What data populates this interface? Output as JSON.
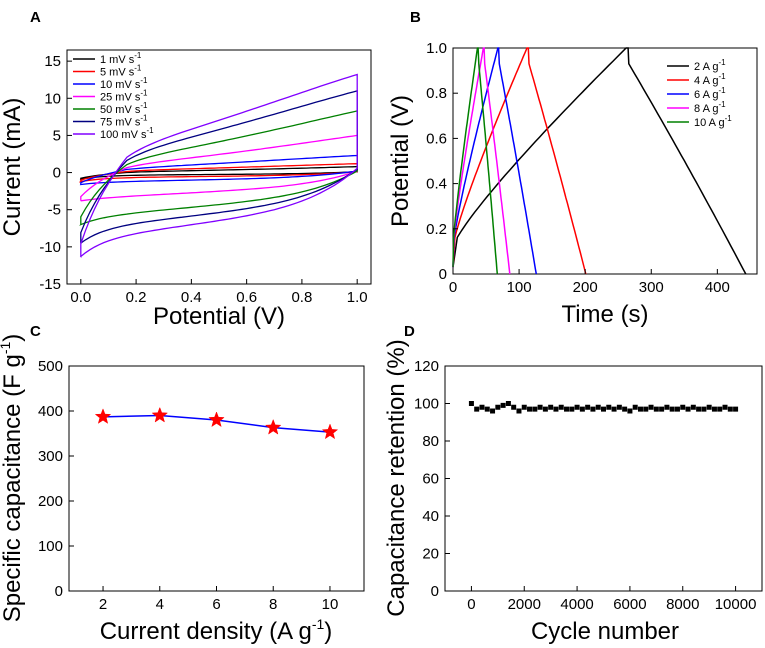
{
  "figure": {
    "panels": [
      "A",
      "B",
      "C",
      "D"
    ]
  },
  "chart_data": [
    {
      "panel": "A",
      "type": "line",
      "xlabel": "Potential (V)",
      "ylabel": "Current (mA)",
      "xlim": [
        -0.05,
        1.05
      ],
      "ylim": [
        -15,
        16.5
      ],
      "xticks": [
        0.0,
        0.2,
        0.4,
        0.6,
        0.8,
        1.0
      ],
      "xtick_labels": [
        "0.0",
        "0.2",
        "0.4",
        "0.6",
        "0.8",
        "1.0"
      ],
      "yticks": [
        -15,
        -10,
        -5,
        0,
        5,
        10,
        15
      ],
      "ytick_labels": [
        "-15",
        "-10",
        "-5",
        "0",
        "5",
        "10",
        "15"
      ],
      "legend_position": "top-left",
      "series": [
        {
          "name": "1 mV s",
          "unit_sup": "-1",
          "color": "#000000",
          "upper_end": 0.8,
          "lower_start": -0.9,
          "upper_plateau": 0.3,
          "lower_plateau": -0.35
        },
        {
          "name": "5 mV s",
          "unit_sup": "-1",
          "color": "#ff0000",
          "upper_end": 1.2,
          "lower_start": -1.2,
          "upper_plateau": 0.7,
          "lower_plateau": -0.7
        },
        {
          "name": "10 mV s",
          "unit_sup": "-1",
          "color": "#0000ff",
          "upper_end": 2.3,
          "lower_start": -1.6,
          "upper_plateau": 1.4,
          "lower_plateau": -1.3
        },
        {
          "name": "25 mV s",
          "unit_sup": "-1",
          "color": "#ff00ff",
          "upper_end": 5.0,
          "lower_start": -3.8,
          "upper_plateau": 2.6,
          "lower_plateau": -3.5
        },
        {
          "name": "50 mV s",
          "unit_sup": "-1",
          "color": "#008000",
          "upper_end": 8.3,
          "lower_start": -7.0,
          "upper_plateau": 4.5,
          "lower_plateau": -6.0
        },
        {
          "name": "75 mV s",
          "unit_sup": "-1",
          "color": "#000080",
          "upper_end": 11.0,
          "lower_start": -9.5,
          "upper_plateau": 6.5,
          "lower_plateau": -7.5
        },
        {
          "name": "100 mV s",
          "unit_sup": "-1",
          "color": "#8000ff",
          "upper_end": 13.2,
          "lower_start": -11.3,
          "upper_plateau": 8.0,
          "lower_plateau": -9.0
        }
      ]
    },
    {
      "panel": "B",
      "type": "line",
      "xlabel": "Time (s)",
      "ylabel": "Potential (V)",
      "xlim": [
        0,
        460
      ],
      "ylim": [
        0,
        1.0
      ],
      "xticks": [
        0,
        100,
        200,
        300,
        400
      ],
      "xtick_labels": [
        "0",
        "100",
        "200",
        "300",
        "400"
      ],
      "yticks": [
        0.0,
        0.2,
        0.4,
        0.6,
        0.8,
        1.0
      ],
      "ytick_labels": [
        "0",
        "0.2",
        "0.4",
        "0.6",
        "0.8",
        "1.0"
      ],
      "legend_position": "top-right",
      "series": [
        {
          "name": "2 A g",
          "unit_sup": "-1",
          "color": "#000000",
          "charge_end": 262,
          "plateau_end": 265,
          "discharge_end": 443
        },
        {
          "name": "4 A g",
          "unit_sup": "-1",
          "color": "#ff0000",
          "charge_end": 112,
          "plateau_end": 114,
          "discharge_end": 201
        },
        {
          "name": "6 A g",
          "unit_sup": "-1",
          "color": "#0000ff",
          "charge_end": 68,
          "plateau_end": 69,
          "discharge_end": 126
        },
        {
          "name": "8 A g",
          "unit_sup": "-1",
          "color": "#ff00ff",
          "charge_end": 46,
          "plateau_end": 47,
          "discharge_end": 86
        },
        {
          "name": "10 A g",
          "unit_sup": "-1",
          "color": "#008000",
          "charge_end": 37,
          "plateau_end": 38,
          "discharge_end": 67
        }
      ]
    },
    {
      "panel": "C",
      "type": "line",
      "xlabel": "Current density (A g",
      "xlabel_sup": "-1",
      "xlabel_tail": ")",
      "ylabel": "Specific capacitance (F g",
      "ylabel_sup": "-1",
      "ylabel_tail": ")",
      "xlim": [
        0.8,
        11.2
      ],
      "ylim": [
        0,
        500
      ],
      "xticks": [
        2,
        4,
        6,
        8,
        10
      ],
      "xtick_labels": [
        "2",
        "4",
        "6",
        "8",
        "10"
      ],
      "yticks": [
        0,
        100,
        200,
        300,
        400,
        500
      ],
      "ytick_labels": [
        "0",
        "100",
        "200",
        "300",
        "400",
        "500"
      ],
      "x": [
        2,
        4,
        6,
        8,
        10
      ],
      "values": [
        387,
        390,
        380,
        363,
        353
      ],
      "line_color": "#0000ff",
      "marker_color": "#ff0000",
      "marker": "star"
    },
    {
      "panel": "D",
      "type": "scatter",
      "xlabel": "Cycle number",
      "ylabel": "Capacitance retention (%)",
      "xlim": [
        -1000,
        11000
      ],
      "ylim": [
        0,
        120
      ],
      "xticks": [
        0,
        2000,
        4000,
        6000,
        8000,
        10000
      ],
      "xtick_labels": [
        "0",
        "2000",
        "4000",
        "6000",
        "8000",
        "10000"
      ],
      "yticks": [
        0,
        20,
        40,
        60,
        80,
        100,
        120
      ],
      "ytick_labels": [
        "0",
        "20",
        "40",
        "60",
        "80",
        "100",
        "120"
      ],
      "marker": "square",
      "marker_color": "#000000",
      "x": [
        0,
        200,
        400,
        600,
        800,
        1000,
        1200,
        1400,
        1600,
        1800,
        2000,
        2200,
        2400,
        2600,
        2800,
        3000,
        3200,
        3400,
        3600,
        3800,
        4000,
        4200,
        4400,
        4600,
        4800,
        5000,
        5200,
        5400,
        5600,
        5800,
        6000,
        6200,
        6400,
        6600,
        6800,
        7000,
        7200,
        7400,
        7600,
        7800,
        8000,
        8200,
        8400,
        8600,
        8800,
        9000,
        9200,
        9400,
        9600,
        9800,
        10000
      ],
      "values": [
        100,
        97,
        98,
        97,
        96,
        98,
        99,
        100,
        98,
        96,
        98,
        97,
        97,
        98,
        97,
        98,
        97,
        98,
        97,
        97,
        98,
        97,
        98,
        97,
        98,
        97,
        98,
        97,
        98,
        97,
        96,
        98,
        97,
        97,
        98,
        97,
        97,
        98,
        97,
        97,
        98,
        97,
        98,
        97,
        97,
        98,
        97,
        97,
        98,
        97,
        97
      ]
    }
  ]
}
